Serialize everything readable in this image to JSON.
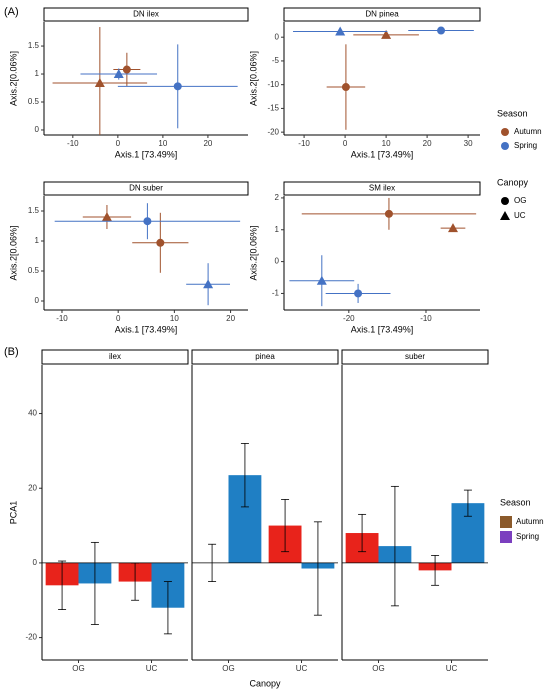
{
  "chart_data": [
    {
      "type": "scatter",
      "label": "(A)",
      "x_label": "Axis.1 [73.49%]",
      "y_label": "Axis.2[0.06%]",
      "season_legend": {
        "title": "Season",
        "names": [
          "Autumn",
          "Spring"
        ],
        "colors": [
          "#a0522d",
          "#4472c4"
        ]
      },
      "canopy_legend": {
        "title": "Canopy",
        "names": [
          "OG",
          "UC"
        ],
        "shapes": [
          "circle",
          "triangle"
        ]
      },
      "facets": [
        {
          "title": "DN ilex",
          "xlim": [
            -16.4,
            28.9
          ],
          "xticks": [
            -10,
            0,
            10,
            20
          ],
          "ylim": [
            -0.09,
            1.93
          ],
          "yticks": [
            0,
            0.5,
            1,
            1.5
          ],
          "points": [
            {
              "season": "Autumn",
              "canopy": "UC",
              "x": -4,
              "y": 0.84,
              "xerr": 10.5,
              "yerr": 1.0
            },
            {
              "season": "Autumn",
              "canopy": "OG",
              "x": 2,
              "y": 1.08,
              "xerr": 3,
              "yerr": 0.3
            },
            {
              "season": "Spring",
              "canopy": "UC",
              "x": 0.2,
              "y": 1.0,
              "xerr": 8.5,
              "yerr": 0.1
            },
            {
              "season": "Spring",
              "canopy": "OG",
              "x": 13.3,
              "y": 0.78,
              "xerr": 13.3,
              "yerr": 0.75
            }
          ]
        },
        {
          "title": "DN pinea",
          "xlim": [
            -14.9,
            32.9
          ],
          "xticks": [
            -10,
            0,
            10,
            20,
            30
          ],
          "ylim": [
            -20.6,
            3.2
          ],
          "yticks": [
            -20,
            -15,
            -10,
            -5,
            0
          ],
          "points": [
            {
              "season": "Autumn",
              "canopy": "OG",
              "x": 0.2,
              "y": -10.5,
              "xerr": 4.7,
              "yerr": 9
            },
            {
              "season": "Autumn",
              "canopy": "UC",
              "x": 10,
              "y": 0.5,
              "xerr": 8,
              "yerr": 0.5
            },
            {
              "season": "Spring",
              "canopy": "UC",
              "x": -1.2,
              "y": 1.2,
              "xerr": 11.5,
              "yerr": 0.3
            },
            {
              "season": "Spring",
              "canopy": "OG",
              "x": 23.4,
              "y": 1.4,
              "xerr": 8,
              "yerr": 0.3
            }
          ]
        },
        {
          "title": "DN suber",
          "xlim": [
            -13.2,
            23.1
          ],
          "xticks": [
            -10,
            0,
            10,
            20
          ],
          "ylim": [
            -0.15,
            1.75
          ],
          "yticks": [
            0,
            0.5,
            1,
            1.5
          ],
          "points": [
            {
              "season": "Autumn",
              "canopy": "UC",
              "x": -2,
              "y": 1.4,
              "xerr": 4.3,
              "yerr": 0.2
            },
            {
              "season": "Autumn",
              "canopy": "OG",
              "x": 7.5,
              "y": 0.97,
              "xerr": 5,
              "yerr": 0.5
            },
            {
              "season": "Spring",
              "canopy": "OG",
              "x": 5.2,
              "y": 1.33,
              "xerr": 16.5,
              "yerr": 0.3
            },
            {
              "season": "Spring",
              "canopy": "UC",
              "x": 16,
              "y": 0.28,
              "xerr": 3.9,
              "yerr": 0.35
            }
          ]
        },
        {
          "title": "SM ilex",
          "xlim": [
            -28.4,
            -3
          ],
          "xticks": [
            -20,
            -10
          ],
          "ylim": [
            -1.52,
            2.06
          ],
          "yticks": [
            -1,
            0,
            1,
            2
          ],
          "points": [
            {
              "season": "Autumn",
              "canopy": "OG",
              "x": -14.8,
              "y": 1.5,
              "xerr": 11.3,
              "yerr": 0.5
            },
            {
              "season": "Autumn",
              "canopy": "UC",
              "x": -6.5,
              "y": 1.05,
              "xerr": 1.6,
              "yerr": 0.1
            },
            {
              "season": "Spring",
              "canopy": "UC",
              "x": -23.5,
              "y": -0.6,
              "xerr": 4.2,
              "yerr": 0.8
            },
            {
              "season": "Spring",
              "canopy": "OG",
              "x": -18.8,
              "y": -1.0,
              "xerr": 4.2,
              "yerr": 0.3
            }
          ]
        }
      ]
    },
    {
      "type": "bar",
      "label": "(B)",
      "x_label": "Canopy",
      "y_label": "PCA1",
      "ylim": [
        -26,
        53
      ],
      "yticks": [
        -20,
        0,
        20,
        40
      ],
      "legend_title": "Season",
      "legend_colors": [
        "#8b5a2b",
        "#7b3fbf"
      ],
      "facets": [
        {
          "title": "ilex",
          "categories": [
            "OG",
            "UC"
          ],
          "series": [
            {
              "name": "Autumn",
              "color": "#e8231b",
              "values": [
                -6,
                -5
              ],
              "errors": [
                6.5,
                5
              ]
            },
            {
              "name": "Spring",
              "color": "#1f7fc4",
              "values": [
                -5.5,
                -12
              ],
              "errors": [
                11,
                7
              ]
            }
          ]
        },
        {
          "title": "pinea",
          "categories": [
            "OG",
            "UC"
          ],
          "series": [
            {
              "name": "Autumn",
              "color": "#e8231b",
              "values": [
                0,
                10
              ],
              "errors": [
                5,
                7
              ]
            },
            {
              "name": "Spring",
              "color": "#1f7fc4",
              "values": [
                23.5,
                -1.5
              ],
              "errors": [
                8.5,
                12.5
              ]
            }
          ]
        },
        {
          "title": "suber",
          "categories": [
            "OG",
            "UC"
          ],
          "series": [
            {
              "name": "Autumn",
              "color": "#e8231b",
              "values": [
                8,
                -2
              ],
              "errors": [
                5,
                4
              ]
            },
            {
              "name": "Spring",
              "color": "#1f7fc4",
              "values": [
                4.5,
                16
              ],
              "errors": [
                16,
                3.5
              ]
            }
          ]
        }
      ]
    }
  ]
}
